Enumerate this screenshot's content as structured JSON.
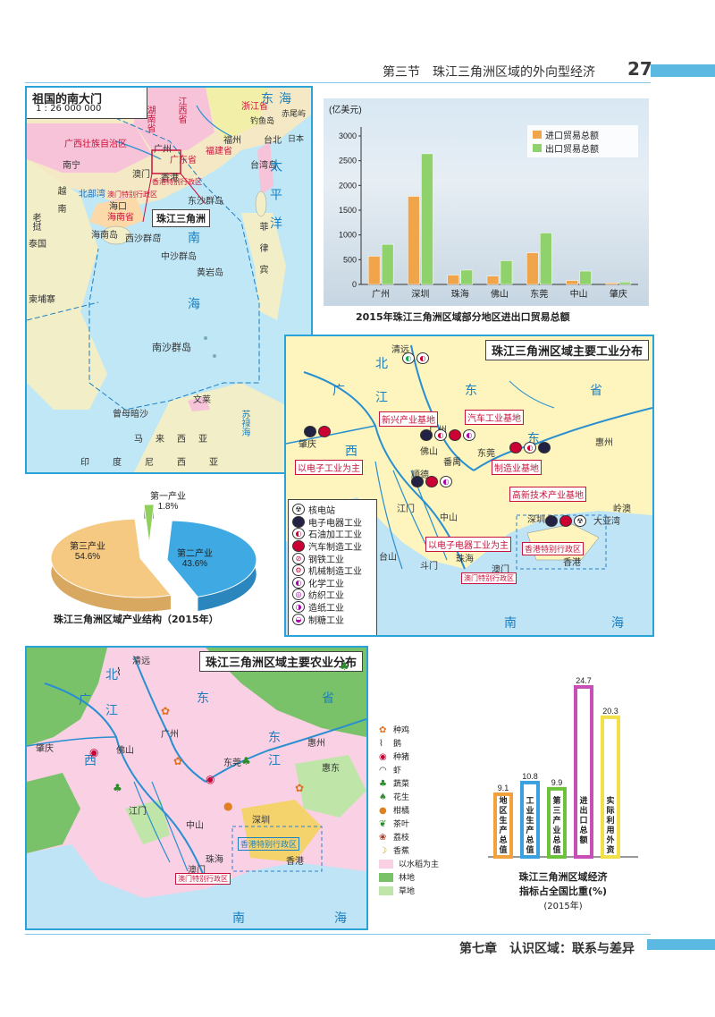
{
  "header": {
    "section_title": "第三节　珠江三角洲区域的外向型经济",
    "page_number": "27"
  },
  "footer": {
    "chapter": "第七章　认识区域：联系与差异"
  },
  "map_south_gate": {
    "title": "祖国的南大门",
    "scale": "1 : 26 000 000",
    "inset_label": "珠江三角洲",
    "labels": [
      "湖南省",
      "江西省",
      "浙江省",
      "福建省",
      "广西壮族自治区",
      "广州",
      "广东省",
      "福州",
      "台北",
      "南宁",
      "澳门",
      "香港",
      "台湾岛",
      "海口",
      "海南省",
      "香港特别行政区",
      "澳门特别行政区",
      "东沙群岛",
      "海南岛",
      "西沙群岛",
      "中沙群岛",
      "黄岩岛",
      "南沙群岛",
      "曾母暗沙",
      "文莱",
      "马来西亚",
      "印度尼西亚",
      "越南",
      "泰国",
      "老挝",
      "柬埔寨",
      "菲律宾",
      "北部湾",
      "东海",
      "太平洋",
      "南海",
      "苏禄海",
      "钓鱼岛",
      "赤尾屿",
      "日本"
    ]
  },
  "trade_chart": {
    "caption": "2015年珠江三角洲区域部分地区进出口贸易总额",
    "colors": {
      "import": "#f0a54a",
      "export": "#8fd16a"
    }
  },
  "chart_data": [
    {
      "type": "bar",
      "title": "",
      "ylabel": "(亿美元)",
      "ylim": [
        0,
        3000
      ],
      "yticks": [
        0,
        500,
        1000,
        1500,
        2000,
        2500,
        3000
      ],
      "categories": [
        "广州",
        "深圳",
        "珠海",
        "佛山",
        "东莞",
        "中山",
        "肇庆"
      ],
      "series": [
        {
          "name": "进口贸易总额",
          "values": [
            570,
            1780,
            190,
            170,
            640,
            80,
            30
          ]
        },
        {
          "name": "出口贸易总额",
          "values": [
            810,
            2640,
            290,
            480,
            1040,
            270,
            50
          ]
        }
      ],
      "legend": "top-right"
    },
    {
      "type": "pie",
      "title": "",
      "slices": [
        {
          "name": "第一产业",
          "value": 1.8
        },
        {
          "name": "第二产业",
          "value": 43.6
        },
        {
          "name": "第三产业",
          "value": 54.6
        }
      ],
      "labels": [
        "第一产业 1.8%",
        "第二产业 43.6%",
        "第三产业 54.6%"
      ]
    },
    {
      "type": "bar",
      "title": "",
      "categories": [
        "地区生产总值",
        "工业生产总值",
        "第三产业总值",
        "进出口总额",
        "实际利用外资"
      ],
      "values": [
        9.1,
        10.8,
        9.9,
        24.7,
        20.3
      ],
      "value_labels": [
        "9.1",
        "10.8",
        "9.9",
        "24.7",
        "20.3"
      ],
      "colors": [
        "#f2a23c",
        "#3aa0e0",
        "#6cc23a",
        "#c84fb8",
        "#f2e04a"
      ],
      "ylim": [
        0,
        26
      ]
    }
  ],
  "pie_chart": {
    "caption": "珠江三角洲区域产业结构（2015年）"
  },
  "index_chart": {
    "caption_lines": [
      "珠江三角洲区域经济",
      "指标占全国比重(%)",
      "(2015年)"
    ]
  },
  "industry_map": {
    "title": "珠江三角洲区域主要工业分布",
    "cities": [
      "清远",
      "广州",
      "肇庆",
      "佛山",
      "东莞",
      "惠州",
      "顺德",
      "番禺",
      "江门",
      "中山",
      "深圳",
      "大亚湾",
      "岭澳",
      "台山",
      "斗门",
      "珠海",
      "澳门",
      "香港"
    ],
    "regions": [
      "广",
      "东",
      "省",
      "西",
      "北",
      "江",
      "东",
      "南",
      "海"
    ],
    "bases": [
      "新兴产业基地",
      "汽车工业基地",
      "以电子工业为主",
      "制造业基地",
      "高新技术产业基地",
      "以电子电器工业为主",
      "香港特别行政区",
      "澳门特别行政区"
    ],
    "legend": [
      "核电站",
      "电子电器工业",
      "石油加工工业",
      "汽车制造工业",
      "钢铁工业",
      "机械制造工业",
      "化学工业",
      "纺织工业",
      "造纸工业",
      "制糖工业"
    ]
  },
  "agri_map": {
    "title": "珠江三角洲区域主要农业分布",
    "cities": [
      "清远",
      "广州",
      "肇庆",
      "佛山",
      "东莞",
      "惠州",
      "惠东",
      "深圳",
      "江门",
      "中山",
      "珠海",
      "澳门",
      "香港"
    ],
    "regions": [
      "广",
      "东",
      "省",
      "西",
      "北",
      "江",
      "东",
      "江",
      "南",
      "海"
    ],
    "special": [
      "香港特别行政区",
      "澳门特别行政区"
    ],
    "legend": [
      "种鸡",
      "鹅",
      "种猪",
      "虾",
      "蔬菜",
      "花生",
      "柑橘",
      "茶叶",
      "荔枝",
      "香蕉",
      "以水稻为主",
      "林地",
      "草地"
    ]
  }
}
